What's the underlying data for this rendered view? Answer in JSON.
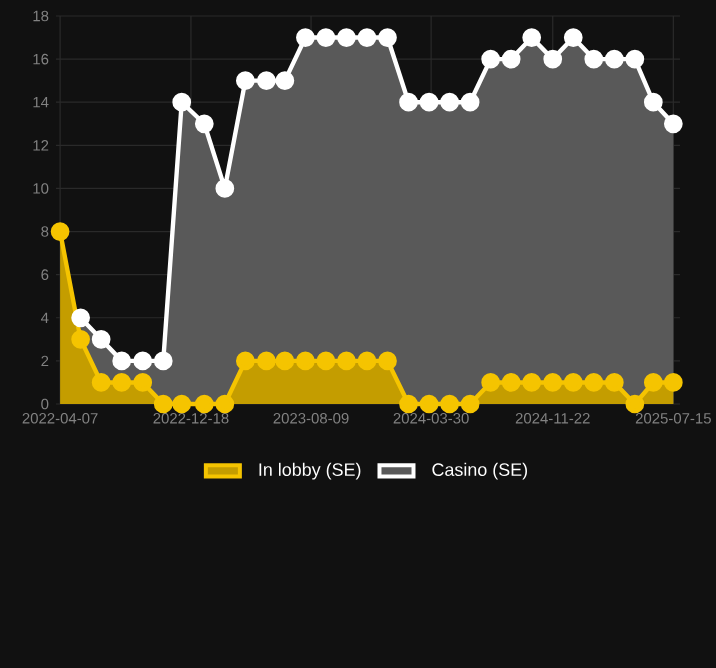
{
  "chart_data": {
    "type": "area",
    "x": [
      "2022-04-07",
      "2022-05-17",
      "2022-06-26",
      "2022-08-05",
      "2022-09-15",
      "2022-10-25",
      "2022-11-30",
      "2023-01-13",
      "2023-02-22",
      "2023-04-03",
      "2023-05-14",
      "2023-06-19",
      "2023-07-29",
      "2023-09-07",
      "2023-10-17",
      "2023-11-26",
      "2024-01-05",
      "2024-02-15",
      "2024-03-26",
      "2024-05-05",
      "2024-06-14",
      "2024-07-24",
      "2024-09-02",
      "2024-10-12",
      "2024-11-22",
      "2025-01-01",
      "2025-02-10",
      "2025-03-22",
      "2025-05-01",
      "2025-06-06",
      "2025-07-15"
    ],
    "series": [
      {
        "name": "In lobby (SE)",
        "color": "#f5c400",
        "values": [
          8,
          3,
          1,
          1,
          1,
          0,
          0,
          0,
          0,
          2,
          2,
          2,
          2,
          2,
          2,
          2,
          2,
          0,
          0,
          0,
          0,
          1,
          1,
          1,
          1,
          1,
          1,
          1,
          0,
          1,
          1
        ]
      },
      {
        "name": "Casino (SE)",
        "color": "#ffffff",
        "values": [
          null,
          4,
          3,
          2,
          2,
          2,
          14,
          13,
          10,
          15,
          15,
          15,
          17,
          17,
          17,
          17,
          17,
          14,
          14,
          14,
          14,
          16,
          16,
          17,
          16,
          17,
          16,
          16,
          16,
          14,
          13
        ]
      }
    ],
    "xlim": [
      "2022-03-30",
      "2025-07-28"
    ],
    "xticks": [
      "2022-04-07",
      "2022-12-18",
      "2023-08-09",
      "2024-03-30",
      "2024-11-22",
      "2025-07-15"
    ],
    "ylim": [
      0,
      18
    ],
    "yticks": [
      0,
      2,
      4,
      6,
      8,
      10,
      12,
      14,
      16,
      18
    ],
    "grid": true,
    "legend": "bottom",
    "marker": "circle"
  }
}
